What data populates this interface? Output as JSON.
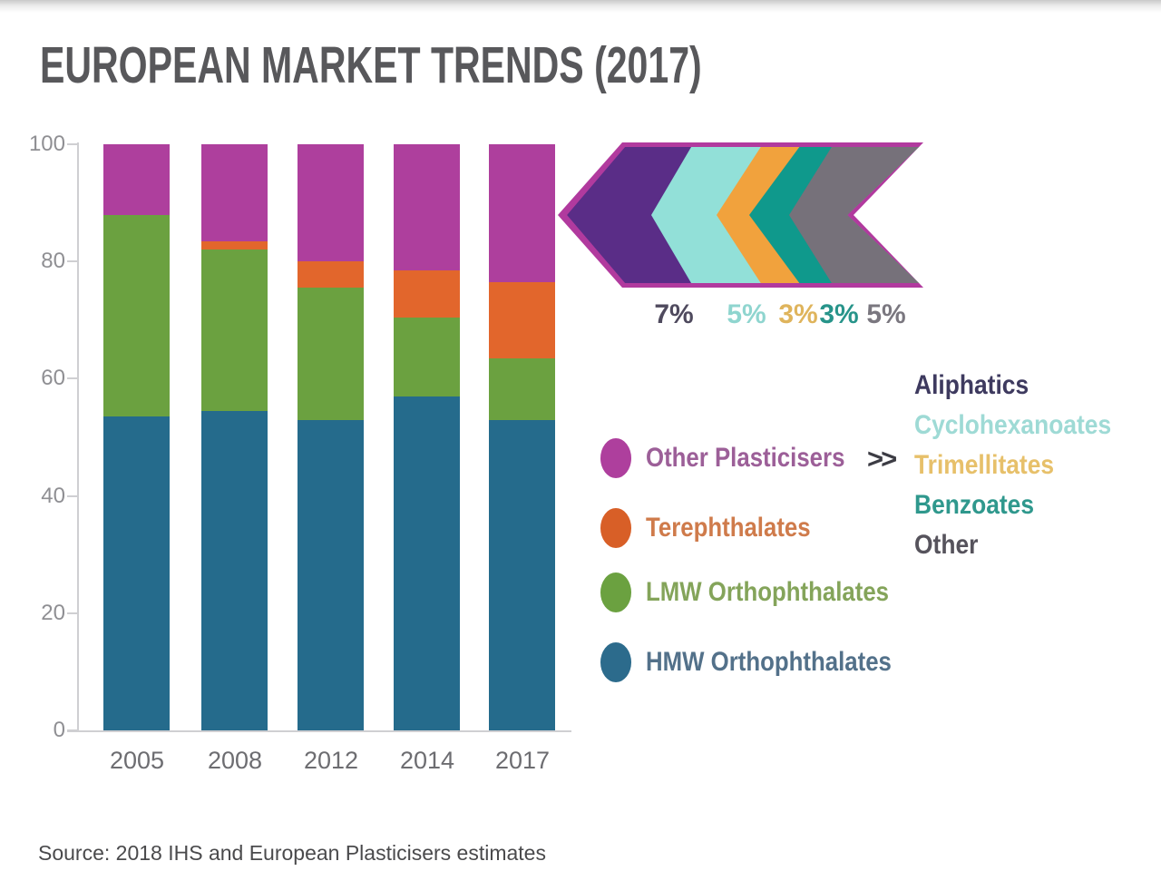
{
  "page": {
    "title": "EUROPEAN MARKET TRENDS (2017)",
    "source": "Source: 2018 IHS and European Plasticisers estimates"
  },
  "chart_data": {
    "type": "bar",
    "subtype": "stacked-percentage-columns",
    "title": "EUROPEAN MARKET TRENDS (2017)",
    "categories": [
      "2005",
      "2008",
      "2012",
      "2014",
      "2017"
    ],
    "series": [
      {
        "name": "HMW Orthophthalates",
        "color": "#256b8c",
        "values": [
          53.5,
          54.5,
          53,
          57,
          53
        ]
      },
      {
        "name": "LMW Orthophthalates",
        "color": "#6ba140",
        "values": [
          34.5,
          27.5,
          22.5,
          13.5,
          10.5
        ]
      },
      {
        "name": "Terephthalates",
        "color": "#e2662c",
        "values": [
          0,
          1.5,
          4.5,
          8,
          13
        ]
      },
      {
        "name": "Other Plasticisers",
        "color": "#ae3f9d",
        "values": [
          12,
          16.5,
          20,
          21.5,
          23.5
        ]
      }
    ],
    "xlabel": "",
    "ylabel": "",
    "ylim": [
      0,
      100
    ],
    "yticks": [
      100,
      80,
      60,
      40,
      20,
      0
    ],
    "grid": false,
    "legend_position": "right",
    "source": "Source: 2018 IHS and European Plasticisers estimates"
  },
  "legend": {
    "items": [
      {
        "label": "Other Plasticisers",
        "color": "#ae3f9d",
        "text_color": "#9c5f98"
      },
      {
        "label": "Terephthalates",
        "color": "#d85f27",
        "text_color": "#cf7b4b"
      },
      {
        "label": "LMW Orthophthalates",
        "color": "#6ba140",
        "text_color": "#84a45a"
      },
      {
        "label": "HMW Orthophthalates",
        "color": "#2c6b8c",
        "text_color": "#53718a"
      }
    ],
    "more_symbol": ">>",
    "more_symbol_color": "#3c3c44"
  },
  "breakdown": {
    "outline_color": "#b13a9e",
    "items": [
      {
        "label": "Aliphatics",
        "pct": "7%",
        "chevron_color": "#5a2d87",
        "pct_color": "#4f4a5e",
        "label_color": "#3e3a5f"
      },
      {
        "label": "Cyclohexanoates",
        "pct": "5%",
        "chevron_color": "#92e0d8",
        "pct_color": "#8fd5cf",
        "label_color": "#9edad5"
      },
      {
        "label": "Trimellitates",
        "pct": "3%",
        "chevron_color": "#f1a23d",
        "pct_color": "#dfb45c",
        "label_color": "#e7c06a"
      },
      {
        "label": "Benzoates",
        "pct": "3%",
        "chevron_color": "#0f998c",
        "pct_color": "#27948a",
        "label_color": "#2f988d"
      },
      {
        "label": "Other",
        "pct": "5%",
        "chevron_color": "#76717a",
        "pct_color": "#7a777f",
        "label_color": "#56535c"
      }
    ]
  }
}
